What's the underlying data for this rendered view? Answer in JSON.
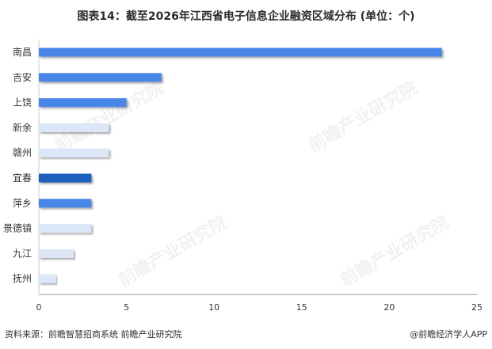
{
  "title": "图表14：截至2026年江西省电子信息企业融资区域分布 (单位：个)",
  "footer": {
    "source": "资料来源：前瞻智慧招商系统 前瞻产业研究院",
    "brand": "@前瞻经济学人APP"
  },
  "watermark": "前瞻产业研究院",
  "colors": {
    "dark": "#1f5fbf",
    "mid": "#4a86e8",
    "light": "#dbe6f7",
    "axis": "#999999"
  },
  "chart_data": {
    "type": "bar",
    "orientation": "horizontal",
    "categories": [
      "南昌",
      "吉安",
      "上饶",
      "新余",
      "赣州",
      "宜春",
      "萍乡",
      "景德镇",
      "九江",
      "抚州"
    ],
    "values": [
      23,
      7,
      5,
      4,
      4,
      3,
      3,
      3,
      2,
      1
    ],
    "bar_colors": [
      "#4a86e8",
      "#4a86e8",
      "#4a86e8",
      "#dbe6f7",
      "#dbe6f7",
      "#1f5fbf",
      "#4a86e8",
      "#dbe6f7",
      "#dbe6f7",
      "#dbe6f7"
    ],
    "xlim": [
      0,
      25
    ],
    "xticks": [
      0,
      5,
      10,
      15,
      20,
      25
    ],
    "grid": false
  }
}
